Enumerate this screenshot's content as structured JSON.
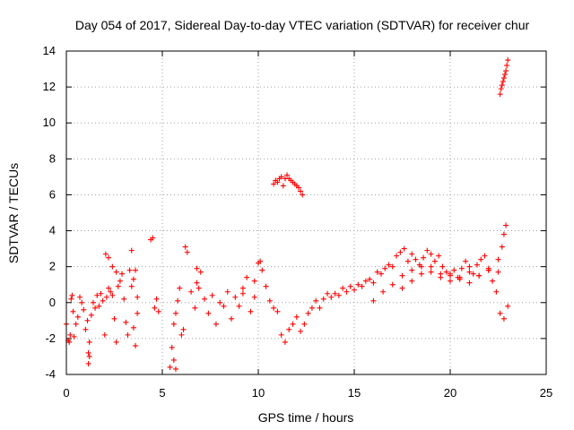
{
  "chart_data": {
    "type": "scatter",
    "title": "Day 054 of 2017, Sidereal Day-to-day VTEC variation (SDTVAR) for receiver chur",
    "xlabel": "GPS time / hours",
    "ylabel": "SDTVAR / TECUs",
    "xlim": [
      0,
      25
    ],
    "ylim": [
      -4,
      14
    ],
    "xticks": [
      0,
      5,
      10,
      15,
      20,
      25
    ],
    "yticks": [
      -4,
      -2,
      0,
      2,
      4,
      6,
      8,
      10,
      12,
      14
    ],
    "grid": true,
    "marker": "+",
    "marker_color": "#ff0000",
    "series": [
      {
        "name": "SDTVAR",
        "x": [
          0.0,
          0.1,
          0.15,
          0.2,
          0.25,
          0.3,
          0.35,
          0.4,
          0.5,
          0.6,
          0.7,
          0.8,
          0.9,
          1.0,
          1.1,
          1.15,
          1.2,
          1.3,
          1.4,
          1.5,
          1.6,
          1.7,
          1.8,
          1.9,
          2.0,
          2.1,
          2.2,
          2.3,
          2.4,
          2.5,
          2.6,
          2.7,
          2.8,
          2.9,
          3.0,
          3.1,
          3.2,
          3.3,
          3.4,
          3.5,
          3.6,
          3.7,
          2.05,
          2.2,
          2.4,
          2.6,
          3.4,
          3.5,
          3.6,
          3.7,
          4.4,
          4.5,
          4.6,
          4.7,
          4.8,
          5.4,
          5.5,
          5.6,
          5.7,
          5.8,
          5.9,
          6.0,
          6.1,
          6.2,
          6.3,
          6.5,
          6.7,
          6.8,
          6.9,
          7.0,
          7.2,
          7.4,
          7.6,
          7.8,
          8.0,
          8.2,
          8.4,
          8.6,
          8.8,
          9.0,
          9.2,
          9.4,
          9.6,
          9.8,
          10.0,
          10.2,
          10.4,
          10.6,
          10.8,
          11.0,
          11.2,
          11.4,
          11.6,
          11.8,
          12.0,
          12.2,
          12.4,
          12.6,
          12.8,
          13.0,
          13.2,
          13.4,
          13.6,
          13.8,
          14.0,
          14.2,
          14.4,
          14.6,
          14.8,
          15.0,
          15.2,
          15.4,
          15.6,
          15.8,
          16.0,
          16.2,
          16.4,
          16.6,
          16.8,
          17.0,
          17.2,
          17.4,
          17.6,
          17.8,
          18.0,
          18.2,
          18.4,
          18.6,
          18.8,
          19.0,
          19.2,
          19.4,
          19.6,
          19.8,
          20.0,
          20.2,
          20.4,
          20.6,
          20.8,
          21.0,
          21.2,
          21.4,
          21.6,
          21.8,
          22.0,
          22.2,
          22.4,
          22.6,
          22.8,
          23.0,
          16.0,
          16.5,
          17.0,
          17.5,
          18.0,
          18.5,
          19.0,
          19.5,
          20.0,
          20.5,
          21.0,
          21.5,
          22.0,
          22.5,
          17.5,
          18.0,
          18.5,
          19.0,
          19.5,
          20.0,
          20.5,
          21.0,
          21.5,
          22.0,
          22.5,
          22.7,
          22.8,
          22.9,
          10.8,
          10.9,
          11.0,
          11.1,
          11.2,
          11.3,
          11.4,
          11.5,
          11.6,
          11.7,
          11.8,
          11.9,
          12.0,
          12.1,
          12.2,
          12.3,
          22.6,
          22.65,
          22.7,
          22.75,
          22.8,
          22.85,
          22.9,
          22.95,
          23.0,
          1.15,
          1.2,
          5.6,
          5.7,
          6.8,
          9.2,
          9.8,
          10.1
        ],
        "y": [
          -1.2,
          -2.1,
          -2.2,
          -1.8,
          0.2,
          0.4,
          -0.5,
          -1.9,
          -1.2,
          -0.8,
          0.3,
          0.0,
          -0.4,
          -1.5,
          -1.0,
          -3.4,
          -2.2,
          -0.7,
          0.0,
          -0.3,
          0.4,
          -0.2,
          0.5,
          0.1,
          -1.8,
          0.3,
          0.8,
          0.6,
          0.4,
          -0.9,
          -2.2,
          0.9,
          1.2,
          1.6,
          0.2,
          -1.1,
          -1.8,
          1.8,
          2.9,
          -1.4,
          -2.4,
          -0.6,
          2.7,
          2.5,
          2.0,
          1.7,
          0.9,
          1.3,
          1.8,
          0.3,
          3.5,
          3.6,
          -0.3,
          0.2,
          -0.5,
          -3.6,
          -2.5,
          -1.2,
          -0.6,
          0.1,
          0.8,
          -1.8,
          -1.5,
          3.1,
          2.8,
          0.6,
          -0.3,
          1.1,
          0.8,
          1.7,
          0.2,
          -0.6,
          0.4,
          -1.2,
          0.0,
          -0.2,
          0.6,
          -0.9,
          0.3,
          -0.2,
          0.8,
          1.4,
          -0.5,
          0.3,
          2.2,
          1.8,
          0.9,
          0.1,
          -0.3,
          -0.5,
          -1.8,
          -2.2,
          -1.5,
          -1.2,
          -0.8,
          -1.6,
          -1.2,
          -0.6,
          -0.3,
          0.1,
          -0.3,
          0.2,
          0.5,
          0.3,
          0.5,
          0.4,
          0.8,
          0.6,
          0.9,
          0.7,
          1.0,
          0.9,
          1.2,
          1.3,
          1.1,
          1.7,
          1.6,
          1.9,
          2.1,
          2.0,
          2.6,
          2.8,
          3.0,
          2.3,
          2.7,
          2.4,
          2.1,
          2.5,
          2.9,
          2.7,
          2.3,
          2.6,
          2.0,
          1.7,
          1.5,
          1.8,
          1.4,
          1.9,
          2.3,
          2.0,
          1.6,
          2.1,
          2.4,
          2.6,
          1.8,
          1.2,
          0.6,
          -0.6,
          -0.9,
          -0.2,
          0.1,
          0.6,
          1.0,
          1.5,
          1.8,
          2.0,
          1.7,
          1.4,
          1.6,
          1.3,
          1.1,
          1.5,
          1.8,
          1.7,
          0.8,
          1.2,
          1.6,
          2.0,
          1.6,
          1.2,
          1.4,
          1.7,
          1.5,
          1.9,
          2.4,
          3.1,
          3.8,
          4.3,
          6.6,
          6.8,
          6.7,
          6.9,
          7.0,
          6.5,
          6.9,
          7.1,
          6.9,
          6.8,
          6.7,
          6.6,
          6.5,
          6.4,
          6.2,
          6.0,
          11.6,
          11.9,
          12.1,
          12.3,
          12.5,
          12.7,
          12.9,
          13.2,
          13.5,
          -2.8,
          -3.0,
          -3.2,
          -3.7,
          1.9,
          0.5,
          1.2,
          2.3
        ]
      }
    ]
  }
}
